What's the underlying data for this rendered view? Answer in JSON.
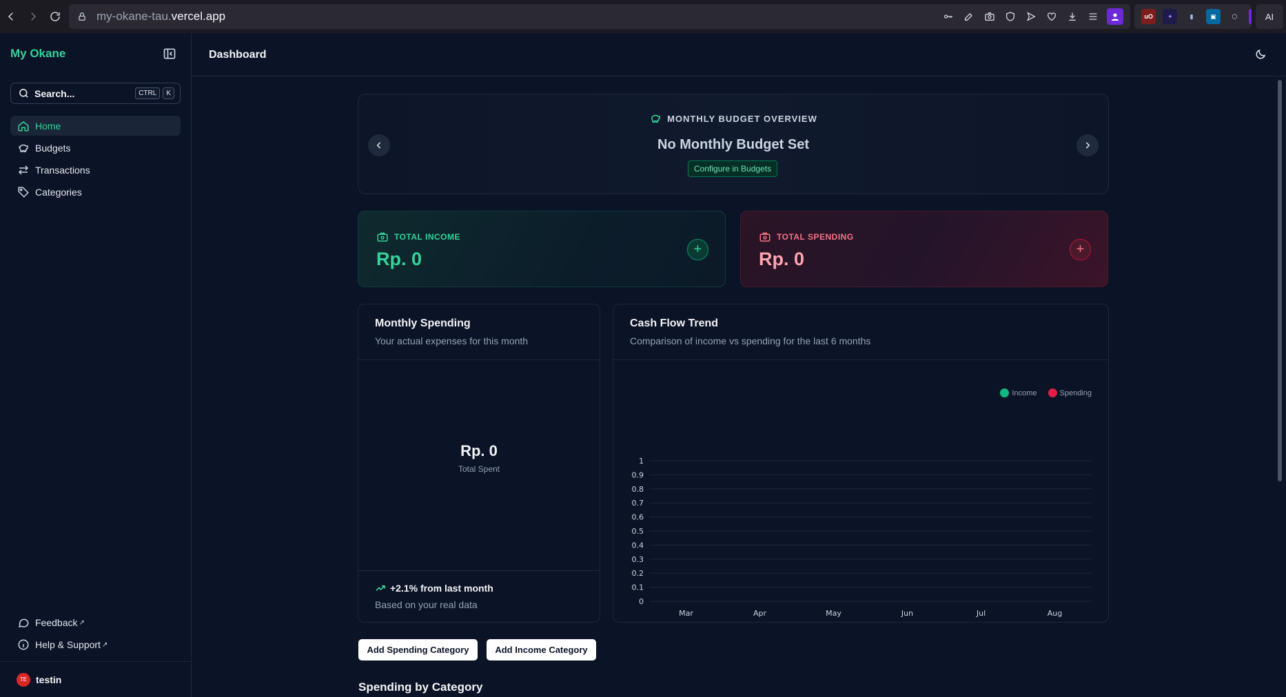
{
  "browser": {
    "url_prefix": "my-okane-tau.",
    "url_domain": "vercel.app",
    "ai_label": "AI"
  },
  "sidebar": {
    "brand": "My Okane",
    "search": {
      "label": "Search...",
      "shortcut_1": "CTRL",
      "shortcut_2": "K"
    },
    "items": [
      {
        "label": "Home",
        "icon": "home-icon",
        "active": true
      },
      {
        "label": "Budgets",
        "icon": "piggy-bank-icon",
        "active": false
      },
      {
        "label": "Transactions",
        "icon": "arrows-left-right-icon",
        "active": false
      },
      {
        "label": "Categories",
        "icon": "tag-icon",
        "active": false
      }
    ],
    "footer_links": [
      {
        "label": "Feedback",
        "icon": "message-circle-icon"
      },
      {
        "label": "Help & Support",
        "icon": "info-icon"
      }
    ],
    "user": {
      "initials": "TE",
      "name": "testin"
    }
  },
  "header": {
    "title": "Dashboard"
  },
  "budget_overview": {
    "heading": "MONTHLY BUDGET OVERVIEW",
    "title": "No Monthly Budget Set",
    "configure_label": "Configure in Budgets"
  },
  "income": {
    "label": "TOTAL INCOME",
    "value": "Rp. 0"
  },
  "spending": {
    "label": "TOTAL SPENDING",
    "value": "Rp. 0"
  },
  "monthly_spending": {
    "title": "Monthly Spending",
    "subtitle": "Your actual expenses for this month",
    "total": "Rp. 0",
    "total_label": "Total Spent",
    "trend": "+2.1% from last month",
    "trend_note": "Based on your real data"
  },
  "cash_flow": {
    "title": "Cash Flow Trend",
    "subtitle": "Comparison of income vs spending for the last 6 months"
  },
  "chart_data": {
    "type": "line",
    "title": "Cash Flow Trend",
    "categories": [
      "Mar",
      "Apr",
      "May",
      "Jun",
      "Jul",
      "Aug"
    ],
    "y_ticks": [
      "0",
      "0.1",
      "0.2",
      "0.3",
      "0.4",
      "0.5",
      "0.6",
      "0.7",
      "0.8",
      "0.9",
      "1"
    ],
    "ylim": [
      0,
      1
    ],
    "grid": true,
    "legend_position": "top-right",
    "series": [
      {
        "name": "Income",
        "color": "#10b981",
        "values": [
          0,
          0,
          0,
          0,
          0,
          0
        ]
      },
      {
        "name": "Spending",
        "color": "#e11d48",
        "values": [
          0,
          0,
          0,
          0,
          0,
          0
        ]
      }
    ]
  },
  "actions": {
    "add_spending": "Add Spending Category",
    "add_income": "Add Income Category"
  },
  "sections": {
    "spending_by_category": "Spending by Category"
  }
}
